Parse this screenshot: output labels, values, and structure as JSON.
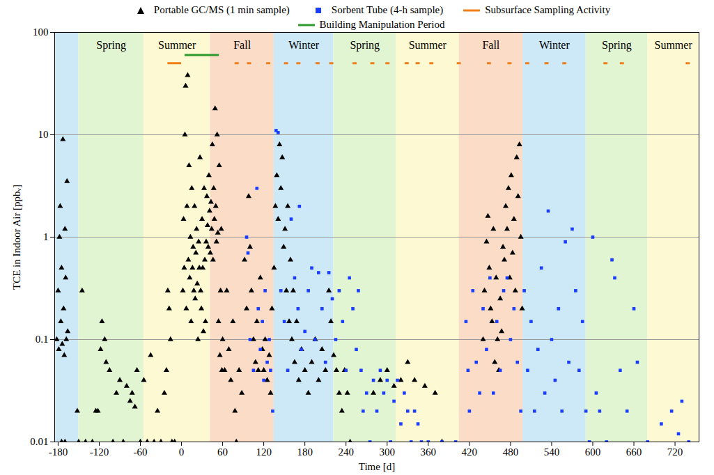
{
  "chart_data": {
    "type": "scatter",
    "x_label": "Time [d]",
    "y_label": "TCE in Indoor Air [ppbᵥ]",
    "log": "y",
    "grid": "y",
    "legend": "top",
    "xlim": [
      -185,
      755
    ],
    "xticks": [
      -180,
      -120,
      -60,
      0,
      60,
      120,
      180,
      240,
      300,
      360,
      420,
      480,
      540,
      600,
      660,
      720
    ],
    "ylim": [
      0.01,
      100
    ],
    "yticks": [
      0.01,
      0.1,
      1,
      10,
      100
    ],
    "bands": [
      {
        "label": null,
        "start": -185,
        "end": -150,
        "color": "#cde8f6"
      },
      {
        "label": "Spring",
        "start": -150,
        "end": -55,
        "color": "#e2f5d3"
      },
      {
        "label": "Summer",
        "start": -55,
        "end": 42,
        "color": "#fdf9d2"
      },
      {
        "label": "Fall",
        "start": 42,
        "end": 135,
        "color": "#fbdcc6"
      },
      {
        "label": "Winter",
        "start": 135,
        "end": 222,
        "color": "#cde8f6"
      },
      {
        "label": "Spring",
        "start": 222,
        "end": 313,
        "color": "#e2f5d3"
      },
      {
        "label": "Summer",
        "start": 313,
        "end": 405,
        "color": "#fdf9d2"
      },
      {
        "label": "Fall",
        "start": 405,
        "end": 498,
        "color": "#fbdcc6"
      },
      {
        "label": "Winter",
        "start": 498,
        "end": 590,
        "color": "#cde8f6"
      },
      {
        "label": "Spring",
        "start": 590,
        "end": 680,
        "color": "#e2f5d3"
      },
      {
        "label": "Summer",
        "start": 680,
        "end": 755,
        "color": "#fdf9d2"
      }
    ],
    "series": [
      {
        "name": "Portable GC/MS (1 min sample)",
        "type": "scatter",
        "marker": "triangle",
        "color": "#000000",
        "x": [
          -182,
          -180,
          -179,
          -178,
          -177,
          -176,
          -175,
          -174,
          -173,
          -172,
          -171,
          -170,
          -169,
          -168,
          -167,
          -166,
          -175,
          -170,
          -152,
          -150,
          -145,
          -140,
          -130,
          -125,
          -122,
          -118,
          -116,
          -112,
          -110,
          -105,
          -100,
          -95,
          -90,
          -85,
          -80,
          -75,
          -72,
          -68,
          -65,
          -60,
          -55,
          -50,
          -45,
          -40,
          -35,
          -30,
          -25,
          -22,
          -20,
          -18,
          -16,
          -14,
          -10,
          2,
          3,
          4,
          5,
          6,
          7,
          8,
          9,
          10,
          11,
          12,
          13,
          14,
          15,
          16,
          17,
          18,
          19,
          20,
          21,
          22,
          23,
          24,
          25,
          26,
          27,
          28,
          29,
          30,
          31,
          32,
          33,
          34,
          35,
          36,
          37,
          38,
          39,
          40,
          41,
          42,
          43,
          44,
          45,
          46,
          47,
          48,
          49,
          50,
          51,
          52,
          53,
          54,
          55,
          56,
          57,
          58,
          59,
          60,
          63,
          66,
          69,
          72,
          75,
          78,
          80,
          84,
          88,
          92,
          95,
          98,
          100,
          102,
          105,
          108,
          110,
          112,
          115,
          118,
          120,
          122,
          125,
          128,
          130,
          132,
          135,
          137,
          139,
          141,
          143,
          145,
          147,
          149,
          151,
          153,
          155,
          157,
          159,
          161,
          163,
          165,
          168,
          171,
          175,
          180,
          185,
          190,
          195,
          200,
          205,
          210,
          215,
          218,
          222,
          226,
          230,
          234,
          238,
          242,
          246,
          280,
          290,
          300,
          310,
          320,
          330,
          340,
          355,
          370,
          380,
          440,
          442,
          445,
          447,
          449,
          451,
          453,
          455,
          457,
          459,
          461,
          463,
          465,
          467,
          469,
          471,
          473,
          475,
          477,
          479,
          481,
          483,
          485,
          487,
          489,
          491,
          493,
          495,
          497
        ],
        "values": [
          0.1,
          0.3,
          0.08,
          1.0,
          2.0,
          0.15,
          0.5,
          0.09,
          9,
          0.2,
          0.07,
          1.2,
          0.4,
          0.1,
          3.5,
          0.12,
          0.01,
          0.01,
          0.02,
          0.01,
          0.3,
          0.01,
          0.01,
          0.02,
          0.02,
          0.08,
          0.15,
          0.1,
          0.06,
          0.05,
          0.01,
          0.03,
          0.04,
          0.01,
          0.035,
          0.025,
          0.03,
          0.022,
          0.05,
          0.01,
          0.04,
          0.01,
          0.07,
          0.01,
          0.02,
          0.01,
          0.03,
          0.05,
          0.3,
          0.2,
          0.1,
          0.01,
          0.01,
          0.3,
          1.5,
          0.5,
          10,
          30,
          0.2,
          2,
          38,
          0.6,
          5,
          0.4,
          1,
          0.15,
          3,
          0.5,
          0.8,
          0.3,
          2,
          0.25,
          0.7,
          1.2,
          0.35,
          0.1,
          0.9,
          0.5,
          6,
          0.3,
          0.2,
          1.5,
          0.5,
          0.12,
          3,
          0.6,
          0.15,
          0.9,
          2.5,
          1.3,
          0.8,
          4,
          1.8,
          0.7,
          2.2,
          1.2,
          8,
          0.6,
          3,
          1.5,
          18,
          2,
          0.9,
          10,
          1.1,
          0.15,
          5,
          0.07,
          0.3,
          1.2,
          0.05,
          0.1,
          0.05,
          0.3,
          0.08,
          0.04,
          0.15,
          0.02,
          0.01,
          0.05,
          0.03,
          0.6,
          0.2,
          2.5,
          0.8,
          0.3,
          0.1,
          0.06,
          0.15,
          0.05,
          0.4,
          0.08,
          0.05,
          0.1,
          0.04,
          0.07,
          0.03,
          0.2,
          0.5,
          2,
          4,
          1.5,
          8,
          3,
          6,
          0.8,
          1.2,
          0.3,
          2,
          0.15,
          0.6,
          0.1,
          0.3,
          0.06,
          0.15,
          0.04,
          0.08,
          0.05,
          0.03,
          0.06,
          0.1,
          0.04,
          0.08,
          0.05,
          0.3,
          0.15,
          0.07,
          0.05,
          0.03,
          0.02,
          0.05,
          0.03,
          0.01,
          0.03,
          0.04,
          0.05,
          0.035,
          0.04,
          0.06,
          0.04,
          0.035,
          0.03,
          0.01,
          0.1,
          0.3,
          0.9,
          1.6,
          0.5,
          0.2,
          0.15,
          1.2,
          0.06,
          0.4,
          0.1,
          0.05,
          0.25,
          0.12,
          0.8,
          0.6,
          2,
          1.2,
          3,
          0.4,
          4,
          0.7,
          1.5,
          0.3,
          6,
          2.5,
          8,
          1,
          0.2
        ]
      },
      {
        "name": "Sorbent Tube (4-h sample)",
        "type": "scatter",
        "marker": "square",
        "color": "#1a3cff",
        "x": [
          95,
          97,
          100,
          105,
          110,
          112,
          115,
          118,
          120,
          122,
          125,
          128,
          130,
          133,
          138,
          141,
          145,
          150,
          155,
          160,
          165,
          170,
          172,
          175,
          180,
          185,
          190,
          195,
          200,
          205,
          210,
          215,
          220,
          225,
          230,
          235,
          240,
          245,
          250,
          255,
          258,
          262,
          265,
          270,
          275,
          280,
          285,
          290,
          295,
          300,
          305,
          310,
          315,
          320,
          325,
          330,
          335,
          340,
          345,
          350,
          360,
          380,
          400,
          415,
          418,
          420,
          425,
          430,
          435,
          440,
          445,
          450,
          455,
          460,
          465,
          470,
          475,
          480,
          485,
          490,
          495,
          500,
          505,
          510,
          515,
          520,
          525,
          530,
          535,
          540,
          545,
          550,
          555,
          560,
          565,
          570,
          575,
          580,
          585,
          590,
          595,
          600,
          605,
          610,
          620,
          628,
          632,
          640,
          650,
          660,
          665,
          680,
          700,
          715,
          725,
          730,
          740
        ],
        "values": [
          1.0,
          0.7,
          0.1,
          0.05,
          3,
          0.2,
          0.08,
          0.15,
          0.04,
          0.3,
          0.06,
          0.1,
          0.05,
          0.02,
          11,
          10.5,
          0.3,
          0.15,
          0.05,
          1.5,
          0.4,
          0.2,
          2,
          0.08,
          0.12,
          0.3,
          0.5,
          0.1,
          0.45,
          0.2,
          0.06,
          0.45,
          0.25,
          0.1,
          0.3,
          0.15,
          0.05,
          0.4,
          0.2,
          0.08,
          0.3,
          0.05,
          0.02,
          0.03,
          0.01,
          0.04,
          0.02,
          0.05,
          0.03,
          0.04,
          0.01,
          0.025,
          0.04,
          0.015,
          0.03,
          0.02,
          0.01,
          0.02,
          0.015,
          0.01,
          0.01,
          0.01,
          0.01,
          0.15,
          0.05,
          0.02,
          0.3,
          0.06,
          0.03,
          0.2,
          0.08,
          0.4,
          0.03,
          0.15,
          0.05,
          0.3,
          0.4,
          0.1,
          0.2,
          0.06,
          0.02,
          0.3,
          0.05,
          0.15,
          0.02,
          0.08,
          0.5,
          0.03,
          1.8,
          0.1,
          0.04,
          0.2,
          0.02,
          0.9,
          0.06,
          1.2,
          0.3,
          0.05,
          0.15,
          0.02,
          0.01,
          1.0,
          0.03,
          0.02,
          0.01,
          0.6,
          0.4,
          0.05,
          0.02,
          0.2,
          0.06,
          0.01,
          0.015,
          0.02,
          0.012,
          0.025,
          0.01
        ]
      },
      {
        "name": "Subsurface Sampling Activity",
        "type": "line",
        "line_style": "solid",
        "color": "#f07f1a",
        "y": 50,
        "segments": [
          [
            -20,
            0
          ],
          [
            78,
            84
          ],
          [
            96,
            102
          ],
          [
            124,
            130
          ],
          [
            150,
            156
          ],
          [
            168,
            174
          ],
          [
            196,
            202
          ],
          [
            216,
            222
          ],
          [
            250,
            256
          ],
          [
            276,
            282
          ],
          [
            298,
            304
          ],
          [
            326,
            332
          ],
          [
            342,
            348
          ],
          [
            362,
            368
          ],
          [
            402,
            408
          ],
          [
            446,
            452
          ],
          [
            476,
            482
          ],
          [
            502,
            508
          ],
          [
            530,
            536
          ],
          [
            556,
            562
          ],
          [
            616,
            622
          ],
          [
            640,
            646
          ],
          [
            736,
            742
          ]
        ]
      },
      {
        "name": "Building Manipulation Period",
        "type": "line",
        "line_style": "solid",
        "color": "#2e9a2e",
        "y": 60,
        "segments": [
          [
            5,
            55
          ]
        ]
      }
    ]
  }
}
